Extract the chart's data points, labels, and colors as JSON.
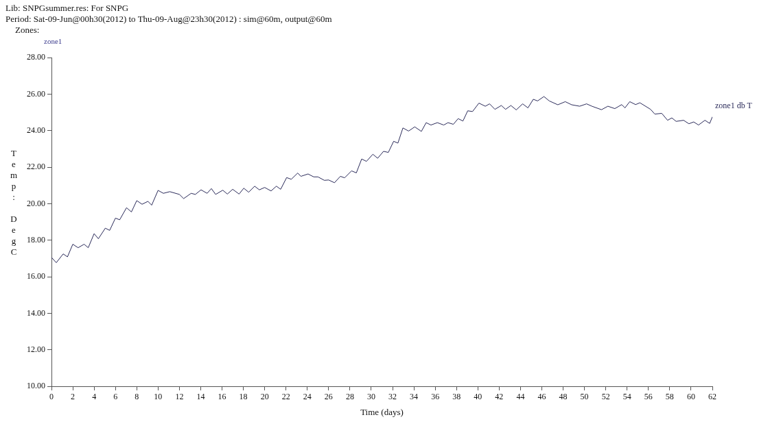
{
  "chart_data": {
    "type": "line",
    "title": "Lib: SNPGsummer.res: For SNPG",
    "subtitle": "Period: Sat-09-Jun@00h30(2012) to Thu-09-Aug@23h30(2012) : sim@60m, output@60m",
    "annotations": [
      "Zones:",
      "zone1"
    ],
    "xlabel": "Time (days)",
    "ylabel": "Temp: DegC",
    "xlim": [
      0,
      62
    ],
    "xticks": [
      0,
      2,
      4,
      6,
      8,
      10,
      12,
      14,
      16,
      18,
      20,
      22,
      24,
      26,
      28,
      30,
      32,
      34,
      36,
      38,
      40,
      42,
      44,
      46,
      48,
      50,
      52,
      54,
      56,
      58,
      60,
      62
    ],
    "ylim": [
      10,
      28
    ],
    "yticks": [
      {
        "value": 10,
        "label": "10.00"
      },
      {
        "value": 12,
        "label": "12.00"
      },
      {
        "value": 14,
        "label": "14.00"
      },
      {
        "value": 16,
        "label": "16.00"
      },
      {
        "value": 18,
        "label": "18.00"
      },
      {
        "value": 20,
        "label": "20.00"
      },
      {
        "value": 22,
        "label": "22.00"
      },
      {
        "value": 24,
        "label": "24.00"
      },
      {
        "value": 26,
        "label": "26.00"
      },
      {
        "value": 28,
        "label": "28.00"
      }
    ],
    "grid": false,
    "legend": false,
    "marker": "none",
    "line_style": "solid",
    "series": [
      {
        "name": "zone1 db T",
        "color": "#2b2b5a",
        "x": [
          0,
          0.45,
          1.1,
          1.5,
          2.0,
          2.5,
          3.06,
          3.45,
          4.0,
          4.4,
          5.05,
          5.46,
          6.0,
          6.4,
          7.04,
          7.5,
          8.0,
          8.5,
          9.05,
          9.4,
          10.0,
          10.5,
          11.1,
          12.0,
          12.4,
          13.1,
          13.5,
          14.03,
          14.6,
          15.0,
          15.4,
          16.07,
          16.5,
          17.0,
          17.6,
          18.04,
          18.5,
          19.06,
          19.5,
          20.0,
          20.6,
          21.1,
          21.5,
          22.06,
          22.5,
          23.1,
          23.4,
          24.07,
          24.6,
          25.0,
          25.6,
          26.0,
          26.55,
          27.1,
          27.5,
          28.15,
          28.6,
          29.1,
          29.55,
          30.15,
          30.6,
          31.15,
          31.6,
          32.1,
          32.5,
          32.97,
          33.5,
          34.08,
          34.7,
          35.15,
          35.6,
          36.2,
          36.8,
          37.2,
          37.7,
          38.15,
          38.6,
          39.05,
          39.5,
          40.1,
          40.7,
          41.1,
          41.6,
          42.2,
          42.6,
          43.1,
          43.6,
          44.2,
          44.7,
          45.2,
          45.6,
          46.2,
          46.7,
          47.5,
          48.2,
          48.8,
          49.55,
          50.2,
          50.7,
          51.6,
          52.2,
          52.85,
          53.5,
          53.8,
          54.25,
          54.8,
          55.2,
          56.2,
          56.6,
          57.25,
          57.8,
          58.2,
          58.6,
          59.3,
          59.8,
          60.25,
          60.7,
          61.3,
          61.75,
          62.0
        ],
        "values": [
          17.06,
          16.77,
          17.25,
          17.09,
          17.78,
          17.59,
          17.78,
          17.59,
          18.36,
          18.08,
          18.66,
          18.54,
          19.21,
          19.12,
          19.78,
          19.55,
          20.17,
          19.97,
          20.13,
          19.92,
          20.73,
          20.57,
          20.66,
          20.51,
          20.28,
          20.57,
          20.51,
          20.76,
          20.57,
          20.83,
          20.51,
          20.74,
          20.53,
          20.79,
          20.53,
          20.85,
          20.63,
          20.96,
          20.76,
          20.89,
          20.7,
          20.96,
          20.79,
          21.43,
          21.34,
          21.68,
          21.5,
          21.63,
          21.47,
          21.47,
          21.28,
          21.3,
          21.15,
          21.5,
          21.42,
          21.8,
          21.69,
          22.45,
          22.32,
          22.71,
          22.49,
          22.87,
          22.81,
          23.42,
          23.32,
          24.15,
          23.98,
          24.21,
          23.96,
          24.44,
          24.31,
          24.44,
          24.31,
          24.44,
          24.35,
          24.66,
          24.53,
          25.09,
          25.05,
          25.51,
          25.34,
          25.47,
          25.17,
          25.38,
          25.17,
          25.38,
          25.14,
          25.47,
          25.25,
          25.72,
          25.63,
          25.87,
          25.63,
          25.42,
          25.59,
          25.42,
          25.34,
          25.47,
          25.34,
          25.15,
          25.34,
          25.21,
          25.43,
          25.25,
          25.59,
          25.43,
          25.53,
          25.17,
          24.91,
          24.95,
          24.57,
          24.7,
          24.51,
          24.57,
          24.38,
          24.48,
          24.31,
          24.57,
          24.4,
          24.76
        ]
      }
    ]
  }
}
